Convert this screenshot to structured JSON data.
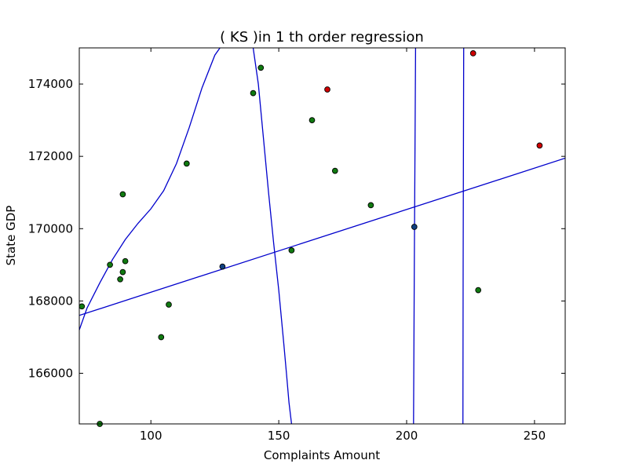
{
  "chart_data": {
    "type": "scatter",
    "title": "(  KS  )in 1 th order regression",
    "xlabel": "Complaints Amount",
    "ylabel": "State GDP",
    "xlim": [
      72,
      262
    ],
    "ylim": [
      164600,
      175000
    ],
    "xticks": [
      100,
      150,
      200,
      250
    ],
    "xtick_labels": [
      "100",
      "150",
      "200",
      "250"
    ],
    "yticks": [
      166000,
      168000,
      170000,
      172000,
      174000
    ],
    "ytick_labels": [
      "166000",
      "168000",
      "170000",
      "172000",
      "174000"
    ],
    "grid": false,
    "legend": "none",
    "colors": {
      "line": "#0000cc",
      "green": "#107a10",
      "red": "#d00000",
      "blue": "#104080",
      "marker_edge": "#000000"
    },
    "points": [
      {
        "x": 73,
        "y": 167850,
        "color": "green"
      },
      {
        "x": 80,
        "y": 164600,
        "color": "green"
      },
      {
        "x": 84,
        "y": 169000,
        "color": "green"
      },
      {
        "x": 88,
        "y": 168600,
        "color": "green"
      },
      {
        "x": 89,
        "y": 168800,
        "color": "green"
      },
      {
        "x": 89,
        "y": 170950,
        "color": "green"
      },
      {
        "x": 90,
        "y": 169100,
        "color": "green"
      },
      {
        "x": 104,
        "y": 167000,
        "color": "green"
      },
      {
        "x": 107,
        "y": 167900,
        "color": "green"
      },
      {
        "x": 114,
        "y": 171800,
        "color": "green"
      },
      {
        "x": 128,
        "y": 168950,
        "color": "blue"
      },
      {
        "x": 140,
        "y": 173750,
        "color": "green"
      },
      {
        "x": 143,
        "y": 174450,
        "color": "green"
      },
      {
        "x": 155,
        "y": 169400,
        "color": "green"
      },
      {
        "x": 163,
        "y": 173000,
        "color": "green"
      },
      {
        "x": 169,
        "y": 173850,
        "color": "red"
      },
      {
        "x": 172,
        "y": 171600,
        "color": "green"
      },
      {
        "x": 186,
        "y": 170650,
        "color": "green"
      },
      {
        "x": 203,
        "y": 170050,
        "color": "blue"
      },
      {
        "x": 226,
        "y": 174850,
        "color": "red"
      },
      {
        "x": 228,
        "y": 168300,
        "color": "green"
      },
      {
        "x": 252,
        "y": 172300,
        "color": "red"
      }
    ],
    "lines": [
      {
        "points": [
          [
            72,
            167600
          ],
          [
            262,
            171950
          ]
        ]
      },
      {
        "points": [
          [
            72,
            167200
          ],
          [
            75,
            167800
          ],
          [
            80,
            168500
          ],
          [
            85,
            169150
          ],
          [
            90,
            169700
          ],
          [
            95,
            170150
          ],
          [
            100,
            170550
          ],
          [
            105,
            171050
          ],
          [
            110,
            171800
          ],
          [
            115,
            172800
          ],
          [
            120,
            173900
          ],
          [
            125,
            174800
          ],
          [
            127,
            175000
          ]
        ]
      },
      {
        "points": [
          [
            140,
            175000
          ],
          [
            142,
            174000
          ],
          [
            144,
            172500
          ],
          [
            146,
            171000
          ],
          [
            148,
            169600
          ],
          [
            150,
            168300
          ],
          [
            152,
            166800
          ],
          [
            153,
            166000
          ],
          [
            154,
            165200
          ],
          [
            155,
            164600
          ]
        ]
      },
      {
        "points": [
          [
            203.5,
            175000
          ],
          [
            203.0,
            169000
          ],
          [
            202.7,
            164600
          ]
        ]
      },
      {
        "points": [
          [
            222.3,
            175000
          ],
          [
            222.1,
            169000
          ],
          [
            222.0,
            164600
          ]
        ]
      }
    ]
  }
}
